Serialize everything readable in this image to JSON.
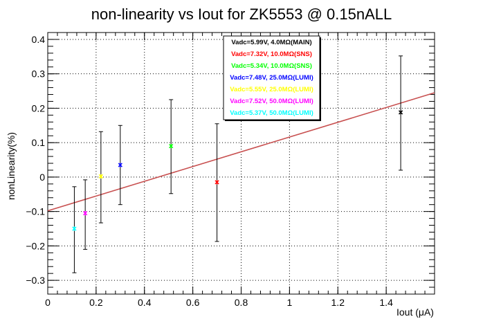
{
  "chart_data": {
    "type": "scatter",
    "title": "non-linearity vs Iout for ZK5553 @ 0.15nALL",
    "xlabel": "Iout (μA)",
    "ylabel": "nonLinearity(%)",
    "xlim": [
      0,
      1.6
    ],
    "ylim": [
      -0.34,
      0.42
    ],
    "x_ticks": [
      {
        "v": 0,
        "label": "0"
      },
      {
        "v": 0.2,
        "label": "0.2"
      },
      {
        "v": 0.4,
        "label": "0.4"
      },
      {
        "v": 0.6,
        "label": "0.6"
      },
      {
        "v": 0.8,
        "label": "0.8"
      },
      {
        "v": 1.0,
        "label": "1"
      },
      {
        "v": 1.2,
        "label": "1.2"
      },
      {
        "v": 1.4,
        "label": "1.4"
      }
    ],
    "y_ticks": [
      {
        "v": -0.3,
        "label": "−0.3"
      },
      {
        "v": -0.2,
        "label": "−0.2"
      },
      {
        "v": -0.1,
        "label": "−0.1"
      },
      {
        "v": 0,
        "label": "0"
      },
      {
        "v": 0.1,
        "label": "0.1"
      },
      {
        "v": 0.2,
        "label": "0.2"
      },
      {
        "v": 0.3,
        "label": "0.3"
      },
      {
        "v": 0.4,
        "label": "0.4"
      }
    ],
    "grid": true,
    "legend_position": "top-center",
    "series": [
      {
        "name": "Vadc=5.99V, 4.0MΩ(MAIN)",
        "color": "#000000",
        "x": 1.46,
        "y": 0.188,
        "err_low": 0.02,
        "err_high": 0.352
      },
      {
        "name": "Vadc=7.32V, 10.0MΩ(SNS)",
        "color": "#ff0000",
        "x": 0.7,
        "y": -0.015,
        "err_low": -0.187,
        "err_high": 0.155
      },
      {
        "name": "Vadc=5.34V, 10.0MΩ(SNS)",
        "color": "#00ff00",
        "x": 0.51,
        "y": 0.09,
        "err_low": -0.048,
        "err_high": 0.225
      },
      {
        "name": "Vadc=7.48V, 25.0MΩ(LUMI)",
        "color": "#0000ff",
        "x": 0.3,
        "y": 0.035,
        "err_low": -0.08,
        "err_high": 0.15
      },
      {
        "name": "Vadc=5.55V, 25.0MΩ(LUMI)",
        "color": "#ffff00",
        "x": 0.22,
        "y": 0.002,
        "err_low": -0.133,
        "err_high": 0.132
      },
      {
        "name": "Vadc=7.52V, 50.0MΩ(LUMI)",
        "color": "#ff00ff",
        "x": 0.155,
        "y": -0.105,
        "err_low": -0.21,
        "err_high": -0.008
      },
      {
        "name": "Vadc=5.37V, 50.0MΩ(LUMI)",
        "color": "#00ffff",
        "x": 0.11,
        "y": -0.15,
        "err_low": -0.278,
        "err_high": -0.028
      }
    ],
    "fit_line": {
      "color": "#c85050",
      "x": [
        0,
        1.6
      ],
      "y": [
        -0.098,
        0.245
      ]
    }
  }
}
